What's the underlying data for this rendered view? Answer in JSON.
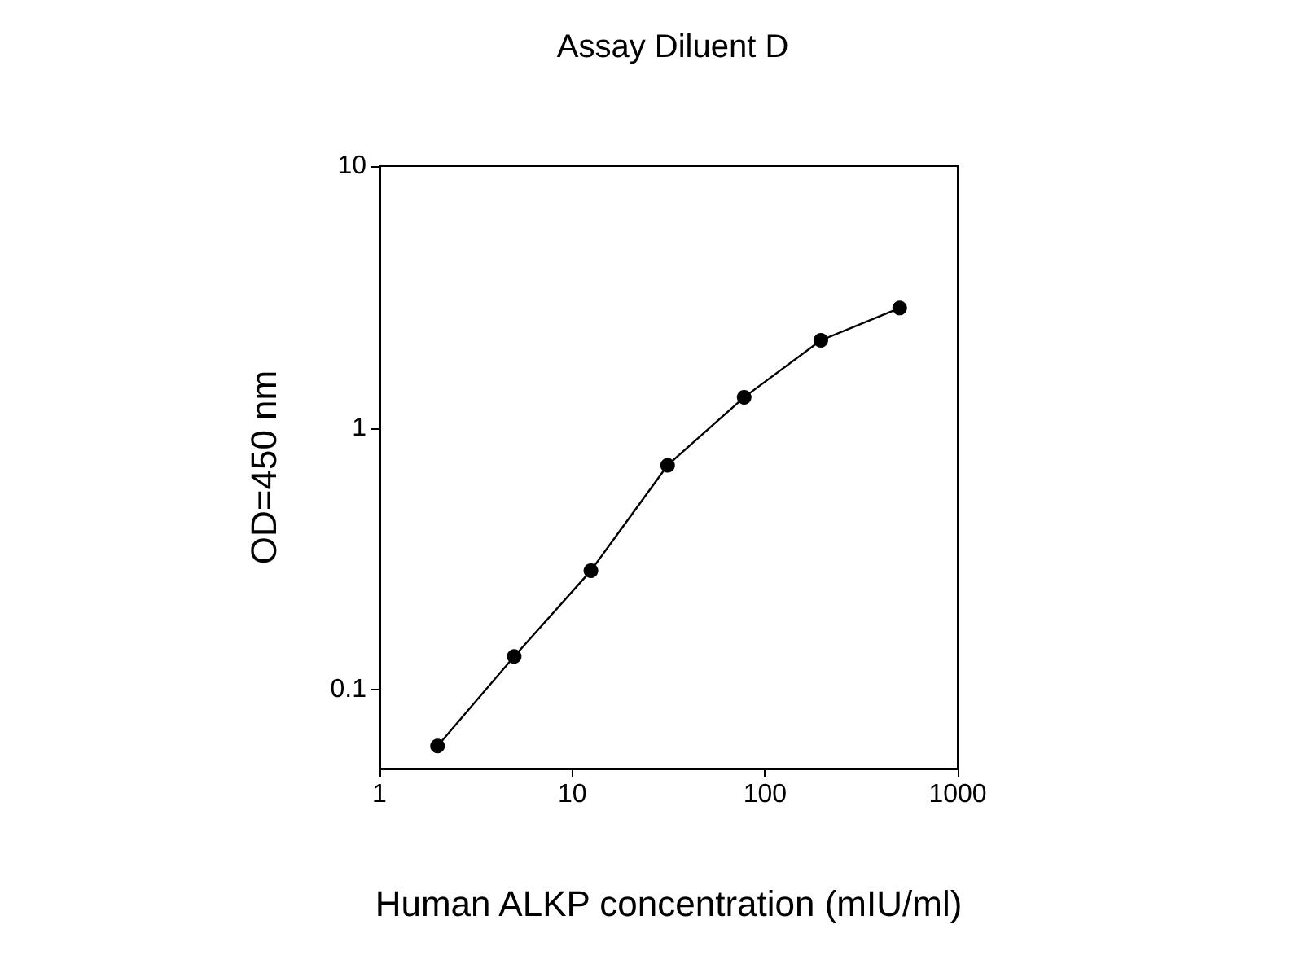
{
  "chart_data": {
    "type": "line",
    "title": "Assay Diluent D",
    "xlabel": "Human ALKP concentration (mIU/ml)",
    "ylabel": "OD=450 nm",
    "log": "xy",
    "marker": "circle",
    "line_style": "solid",
    "x": [
      2,
      5,
      12.5,
      31.25,
      78,
      195,
      500
    ],
    "series": [
      {
        "color": "#000000",
        "values": [
          0.061,
          0.134,
          0.285,
          0.72,
          1.31,
          2.16,
          2.87
        ]
      }
    ],
    "xlim": [
      1,
      1000
    ],
    "xticks": [
      1,
      10,
      100,
      1000
    ],
    "ylim": [
      0.05,
      10
    ],
    "yticks": [
      0.1,
      1,
      10
    ]
  }
}
